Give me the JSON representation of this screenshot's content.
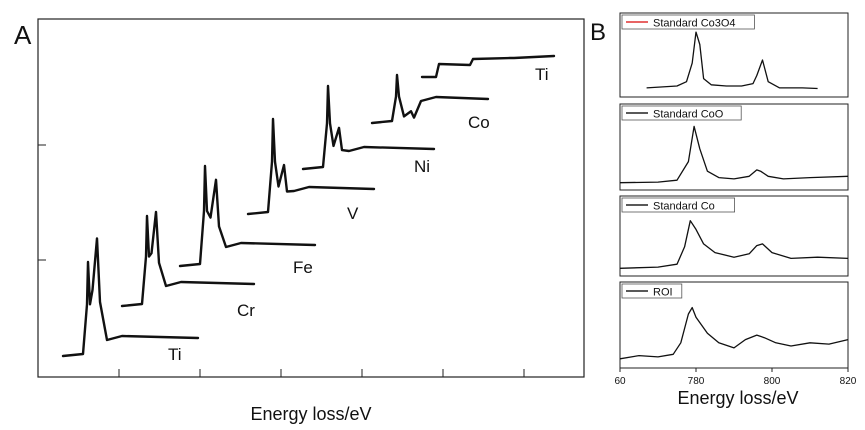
{
  "panel_a": {
    "letter": "A",
    "xlabel": "Energy loss/eV",
    "chart_data": {
      "type": "line",
      "title": "",
      "xlabel": "Energy loss/eV",
      "ylabel": "",
      "series": [
        {
          "name": "Ti",
          "peaks": 2,
          "edge_shape": "L3/L2 doublet, low step"
        },
        {
          "name": "Cr",
          "peaks": 2,
          "edge_shape": "L3/L2 doublet"
        },
        {
          "name": "Fe",
          "peaks": 2,
          "edge_shape": "sharp L3/L2 doublet"
        },
        {
          "name": "V",
          "peaks": 2,
          "edge_shape": "strong L3, weaker L2"
        },
        {
          "name": "Ni",
          "peaks": 2,
          "edge_shape": "strong L3, weaker L2"
        },
        {
          "name": "Co",
          "peaks": 2,
          "edge_shape": "L3, small L2"
        },
        {
          "name": "Ti",
          "peaks": 0,
          "edge_shape": "step edges, no white lines"
        }
      ],
      "grid": false
    }
  },
  "panel_b": {
    "letter": "B",
    "xlabel": "Energy loss/eV",
    "chart_data": {
      "type": "line",
      "xlabel": "Energy loss/eV",
      "xlim": [
        760,
        820
      ],
      "x_ticks": [
        "60",
        "780",
        "800",
        "820"
      ],
      "grid": false,
      "series": [
        {
          "name": "Standard Co3O4",
          "legend_color": "#e03030",
          "x": [
            767,
            775,
            777.5,
            779,
            780,
            781,
            782,
            784,
            788,
            792,
            795,
            796,
            797.5,
            799,
            802,
            808,
            812
          ],
          "y": [
            0.05,
            0.08,
            0.15,
            0.45,
            0.95,
            0.75,
            0.2,
            0.1,
            0.08,
            0.08,
            0.12,
            0.25,
            0.5,
            0.15,
            0.05,
            0.05,
            0.04
          ]
        },
        {
          "name": "Standard CoO",
          "legend_color": "#222222",
          "x": [
            760,
            770,
            775,
            778,
            779.5,
            781,
            783,
            786,
            790,
            794,
            796,
            797,
            799,
            803,
            810,
            820
          ],
          "y": [
            0.02,
            0.03,
            0.06,
            0.35,
            0.9,
            0.55,
            0.2,
            0.1,
            0.08,
            0.12,
            0.22,
            0.2,
            0.12,
            0.08,
            0.1,
            0.12
          ]
        },
        {
          "name": "Standard Co",
          "legend_color": "#222222",
          "x": [
            760,
            770,
            775,
            777,
            778.5,
            780,
            782,
            785,
            790,
            794,
            796,
            797.5,
            800,
            805,
            812,
            820
          ],
          "y": [
            0.03,
            0.05,
            0.1,
            0.4,
            0.85,
            0.7,
            0.45,
            0.3,
            0.22,
            0.28,
            0.42,
            0.45,
            0.3,
            0.2,
            0.22,
            0.2
          ]
        },
        {
          "name": "ROI",
          "legend_color": "#222222",
          "x": [
            760,
            765,
            770,
            774,
            776,
            778,
            779,
            780,
            783,
            786,
            790,
            793,
            796,
            798,
            801,
            805,
            810,
            815,
            820
          ],
          "y": [
            0.05,
            0.1,
            0.08,
            0.12,
            0.3,
            0.75,
            0.85,
            0.7,
            0.45,
            0.3,
            0.22,
            0.35,
            0.42,
            0.38,
            0.3,
            0.25,
            0.3,
            0.28,
            0.35
          ]
        }
      ]
    }
  }
}
